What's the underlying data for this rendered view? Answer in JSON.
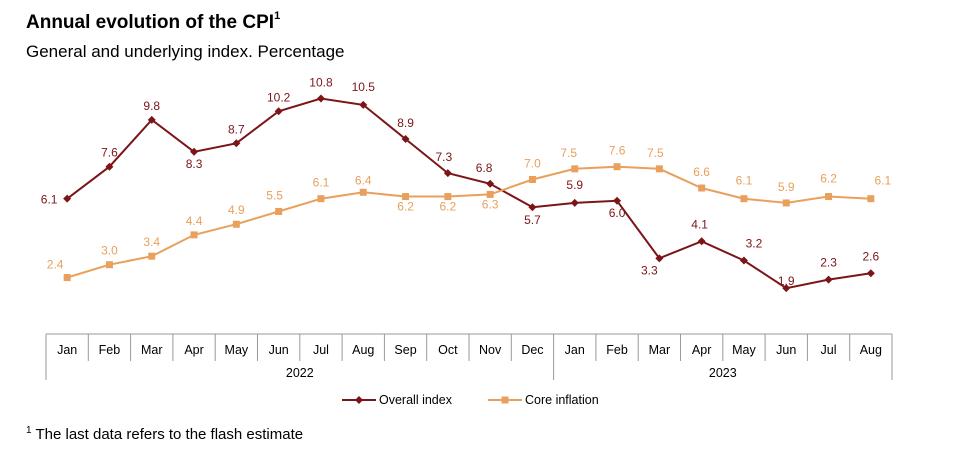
{
  "header": {
    "title": "Annual evolution of the CPI",
    "title_sup": "1",
    "subtitle": "General and underlying index. Percentage"
  },
  "footnote": {
    "sup": "1",
    "text": "The last data refers to the flash estimate"
  },
  "chart_data": {
    "type": "line",
    "categories": [
      "Jan",
      "Feb",
      "Mar",
      "Apr",
      "May",
      "Jun",
      "Jul",
      "Aug",
      "Sep",
      "Oct",
      "Nov",
      "Dec",
      "Jan",
      "Feb",
      "Mar",
      "Apr",
      "May",
      "Jun",
      "Jul",
      "Aug"
    ],
    "groups": [
      {
        "label": "2022",
        "start": 0,
        "end": 11
      },
      {
        "label": "2023",
        "start": 12,
        "end": 19
      }
    ],
    "series": [
      {
        "name": "Overall index",
        "color": "#7b1518",
        "marker": "diamond",
        "values": [
          6.1,
          7.6,
          9.8,
          8.3,
          8.7,
          10.2,
          10.8,
          10.5,
          8.9,
          7.3,
          6.8,
          5.7,
          5.9,
          6.0,
          3.3,
          4.1,
          3.2,
          1.9,
          2.3,
          2.6
        ]
      },
      {
        "name": "Core inflation",
        "color": "#e8a05c",
        "marker": "square",
        "values": [
          2.4,
          3.0,
          3.4,
          4.4,
          4.9,
          5.5,
          6.1,
          6.4,
          6.2,
          6.2,
          6.3,
          7.0,
          7.5,
          7.6,
          7.5,
          6.6,
          6.1,
          5.9,
          6.2,
          6.1
        ]
      }
    ],
    "legend_position": "bottom",
    "grid": false,
    "ylim": [
      0.5,
      11.2
    ]
  }
}
